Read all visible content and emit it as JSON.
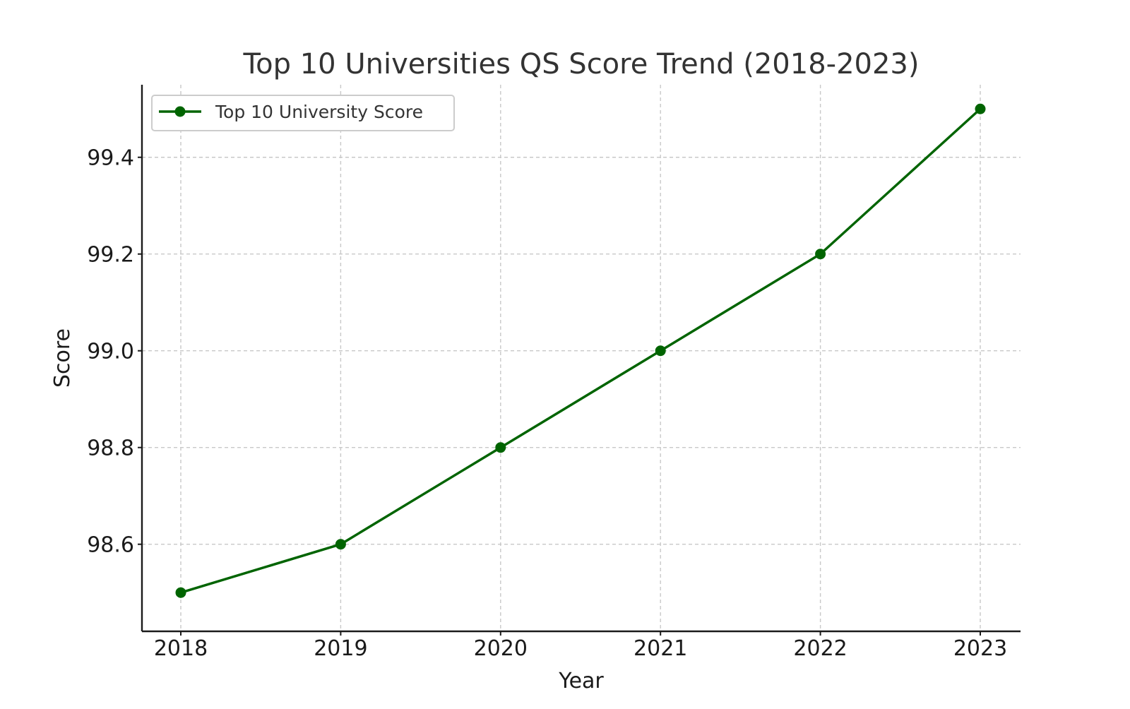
{
  "chart_data": {
    "type": "line",
    "title": "Top 10 Universities QS Score Trend (2018-2023)",
    "xlabel": "Year",
    "ylabel": "Score",
    "categories": [
      "2018",
      "2019",
      "2020",
      "2021",
      "2022",
      "2023"
    ],
    "y_ticks": [
      "98.6",
      "98.8",
      "99.0",
      "99.2",
      "99.4"
    ],
    "ylim": [
      98.42,
      99.55
    ],
    "grid": true,
    "legend_position": "top-left",
    "series": [
      {
        "name": "Top 10 University Score",
        "color": "#006400",
        "marker": "circle",
        "values": [
          98.5,
          98.6,
          98.8,
          99.0,
          99.2,
          99.5
        ]
      }
    ]
  }
}
